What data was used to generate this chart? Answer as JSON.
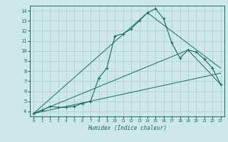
{
  "title": "",
  "xlabel": "Humidex (Indice chaleur)",
  "bg_color": "#cce8e8",
  "line_color": "#1a6b5a",
  "grid_color": "#aacccc",
  "xlim": [
    -0.5,
    23.5
  ],
  "ylim": [
    3.5,
    14.5
  ],
  "xticks": [
    0,
    1,
    2,
    3,
    4,
    5,
    6,
    7,
    8,
    9,
    10,
    11,
    12,
    13,
    14,
    15,
    16,
    17,
    18,
    19,
    20,
    21,
    22,
    23
  ],
  "yticks": [
    4,
    5,
    6,
    7,
    8,
    9,
    10,
    11,
    12,
    13,
    14
  ],
  "main_x": [
    0,
    1,
    2,
    3,
    4,
    5,
    6,
    7,
    8,
    9,
    10,
    11,
    12,
    13,
    14,
    15,
    16,
    17,
    18,
    19,
    20,
    21,
    22,
    23
  ],
  "main_y": [
    3.8,
    4.1,
    4.5,
    4.4,
    4.4,
    4.5,
    4.8,
    5.0,
    7.3,
    8.3,
    11.5,
    11.7,
    12.2,
    13.0,
    13.8,
    14.2,
    13.2,
    10.8,
    9.3,
    10.1,
    9.9,
    9.2,
    8.3,
    6.7
  ],
  "line2_x": [
    0,
    14,
    23
  ],
  "line2_y": [
    3.8,
    13.8,
    8.3
  ],
  "line3_x": [
    0,
    19,
    23
  ],
  "line3_y": [
    3.8,
    10.1,
    6.7
  ],
  "line4_x": [
    0,
    23
  ],
  "line4_y": [
    3.8,
    7.8
  ]
}
